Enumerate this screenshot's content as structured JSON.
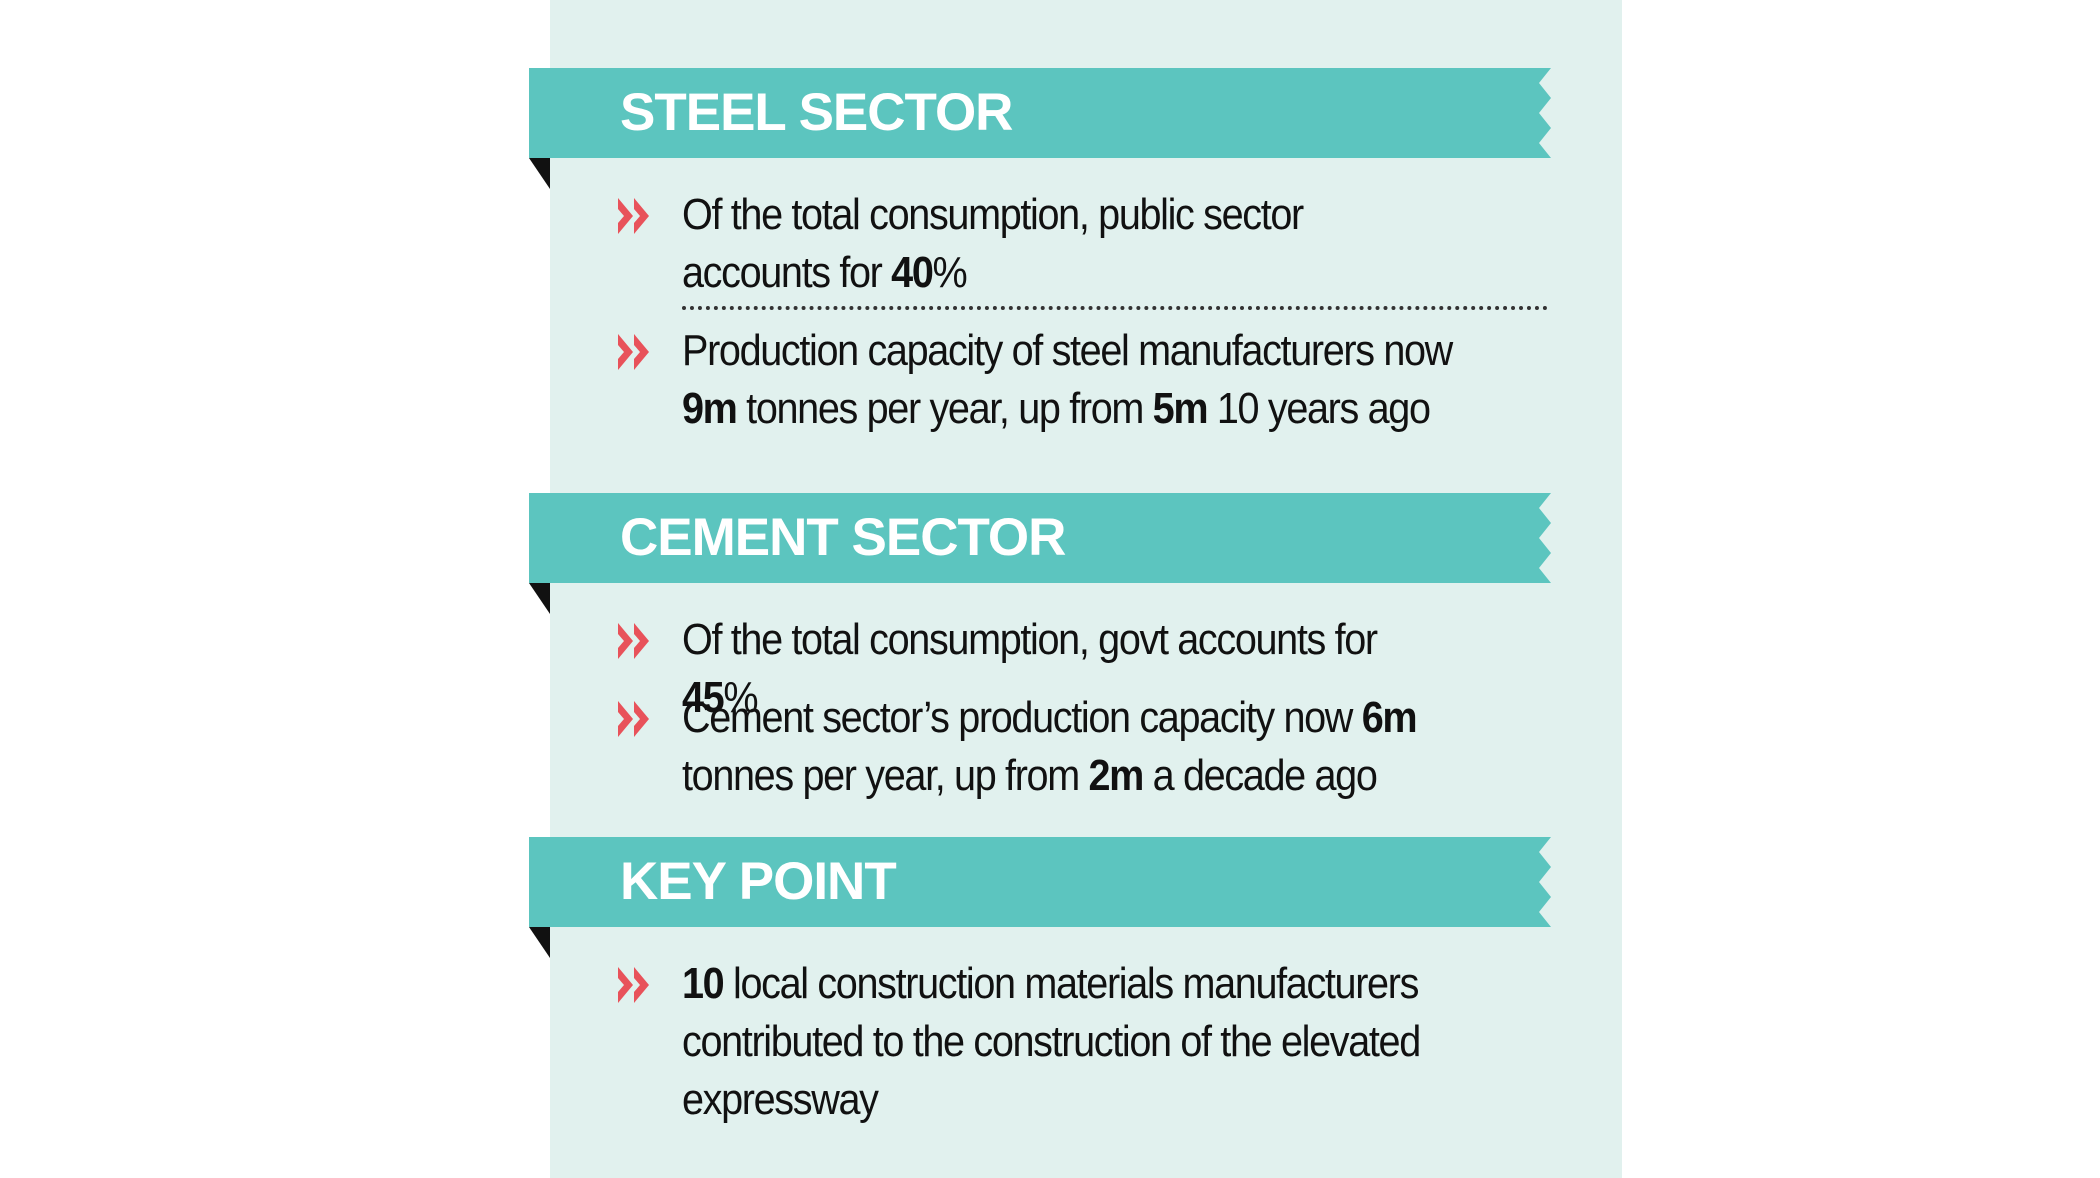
{
  "colors": {
    "panel_bg": "#e1f1ee",
    "ribbon": "#5cc5bf",
    "ribbon_fold": "#111111",
    "bullet_arrow": "#e8525a",
    "text": "#111111"
  },
  "icons": {
    "bullet": "double-chevron-right-icon",
    "fold": "ribbon-fold-triangle"
  },
  "sections": [
    {
      "title": "STEEL SECTOR",
      "items": [
        {
          "parts": [
            {
              "text": "Of the total consumption, public sector accounts for ",
              "bold": false
            },
            {
              "text": "40",
              "bold": true
            },
            {
              "text": "%",
              "bold": false
            }
          ]
        },
        {
          "parts": [
            {
              "text": "Production capacity of steel manufacturers now ",
              "bold": false
            },
            {
              "text": "9m",
              "bold": true
            },
            {
              "text": " tonnes per year, up from ",
              "bold": false
            },
            {
              "text": "5m",
              "bold": true
            },
            {
              "text": " 10 years ago",
              "bold": false
            }
          ]
        }
      ]
    },
    {
      "title": "CEMENT SECTOR",
      "items": [
        {
          "parts": [
            {
              "text": "Of the total consumption, govt accounts for ",
              "bold": false
            },
            {
              "text": "45",
              "bold": true
            },
            {
              "text": "%",
              "bold": false
            }
          ]
        },
        {
          "parts": [
            {
              "text": "Cement sector’s production capacity now ",
              "bold": false
            },
            {
              "text": "6m",
              "bold": true
            },
            {
              "text": " tonnes per year, up from ",
              "bold": false
            },
            {
              "text": "2m",
              "bold": true
            },
            {
              "text": " a decade ago",
              "bold": false
            }
          ]
        }
      ]
    },
    {
      "title": "KEY POINT",
      "items": [
        {
          "parts": [
            {
              "text": "10",
              "bold": true
            },
            {
              "text": " local construction materials manufacturers contributed to the construction of the elevated expressway",
              "bold": false
            }
          ]
        }
      ]
    }
  ]
}
